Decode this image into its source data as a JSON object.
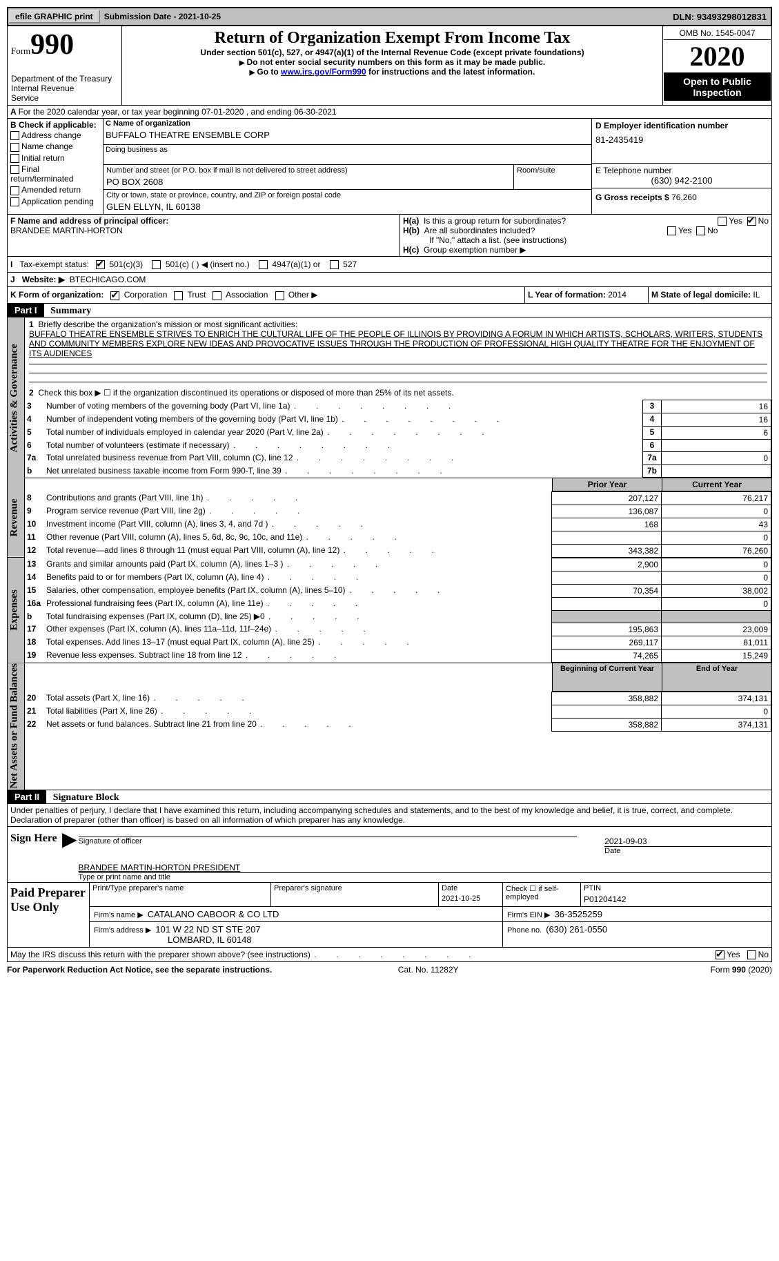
{
  "topbar": {
    "efile_btn": "efile GRAPHIC print",
    "subdate_label": "Submission Date - ",
    "subdate": "2021-10-25",
    "dln_label": "DLN: ",
    "dln": "93493298012831"
  },
  "header": {
    "form_small": "Form",
    "form_big": "990",
    "dept": "Department of the Treasury\nInternal Revenue\nService",
    "title": "Return of Organization Exempt From Income Tax",
    "subtitle": "Under section 501(c), 527, or 4947(a)(1) of the Internal Revenue Code (except private foundations)",
    "instr1": "Do not enter social security numbers on this form as it may be made public.",
    "instr2_pre": "Go to ",
    "instr2_link": "www.irs.gov/Form990",
    "instr2_post": " for instructions and the latest information.",
    "omb": "OMB No. 1545-0047",
    "year": "2020",
    "inspect": "Open to Public Inspection"
  },
  "lineA": "For the 2020 calendar year, or tax year beginning 07-01-2020    , and ending 06-30-2021",
  "secB": {
    "hdr": "B Check if applicable:",
    "items": [
      "Address change",
      "Name change",
      "Initial return",
      "Final return/terminated",
      "Amended return",
      "Application pending"
    ]
  },
  "secC": {
    "label": "C Name of organization",
    "val": "BUFFALO THEATRE ENSEMBLE CORP",
    "dba": "Doing business as",
    "addr_label": "Number and street (or P.O. box if mail is not delivered to street address)",
    "room": "Room/suite",
    "addr": "PO BOX 2608",
    "city_label": "City or town, state or province, country, and ZIP or foreign postal code",
    "city": "GLEN ELLYN, IL  60138"
  },
  "secD": {
    "label": "D Employer identification number",
    "val": "81-2435419"
  },
  "secE": {
    "label": "E Telephone number",
    "val": "(630) 942-2100"
  },
  "secG": {
    "label": "G Gross receipts $ ",
    "val": "76,260"
  },
  "secF": {
    "label": "F  Name and address of principal officer:",
    "val": "BRANDEE MARTIN-HORTON"
  },
  "secH": {
    "a": "Is this a group return for subordinates?",
    "b": "Are all subordinates included?",
    "note": "If \"No,\" attach a list. (see instructions)",
    "c": "Group exemption number ▶",
    "yes": "Yes",
    "no": "No"
  },
  "secI": {
    "label": "Tax-exempt status:",
    "opts": [
      "501(c)(3)",
      "501(c) (   ) ◀ (insert no.)",
      "4947(a)(1) or",
      "527"
    ]
  },
  "secJ": {
    "label": "Website: ▶",
    "val": "BTECHICAGO.COM"
  },
  "secK": {
    "label": "K Form of organization:",
    "opts": [
      "Corporation",
      "Trust",
      "Association",
      "Other ▶"
    ]
  },
  "secL": {
    "label": "L Year of formation: ",
    "val": "2014"
  },
  "secM": {
    "label": "M State of legal domicile: ",
    "val": "IL"
  },
  "part1": {
    "hdr": "Part I",
    "title": "Summary",
    "q1": "Briefly describe the organization's mission or most significant activities:",
    "q1val": "BUFFALO THEATRE ENSEMBLE STRIVES TO ENRICH THE CULTURAL LIFE OF THE PEOPLE OF ILLINOIS BY PROVIDING A FORUM IN WHICH ARTISTS, SCHOLARS, WRITERS, STUDENTS AND COMMUNITY MEMBERS EXPLORE NEW IDEAS AND PROVOCATIVE ISSUES THROUGH THE PRODUCTION OF PROFESSIONAL HIGH QUALITY THEATRE FOR THE ENJOYMENT OF ITS AUDIENCES",
    "q2": "Check this box ▶ ☐  if the organization discontinued its operations or disposed of more than 25% of its net assets.",
    "tabs": {
      "gov": "Activities & Governance",
      "rev": "Revenue",
      "exp": "Expenses",
      "net": "Net Assets or Fund Balances"
    },
    "rows_gov": [
      {
        "n": "3",
        "t": "Number of voting members of the governing body (Part VI, line 1a)",
        "box": "3",
        "v": "16"
      },
      {
        "n": "4",
        "t": "Number of independent voting members of the governing body (Part VI, line 1b)",
        "box": "4",
        "v": "16"
      },
      {
        "n": "5",
        "t": "Total number of individuals employed in calendar year 2020 (Part V, line 2a)",
        "box": "5",
        "v": "6"
      },
      {
        "n": "6",
        "t": "Total number of volunteers (estimate if necessary)",
        "box": "6",
        "v": ""
      },
      {
        "n": "7a",
        "t": "Total unrelated business revenue from Part VIII, column (C), line 12",
        "box": "7a",
        "v": "0"
      },
      {
        "n": "b",
        "t": "Net unrelated business taxable income from Form 990-T, line 39",
        "box": "7b",
        "v": ""
      }
    ],
    "col_hdr_prior": "Prior Year",
    "col_hdr_curr": "Current Year",
    "rows_rev": [
      {
        "n": "8",
        "t": "Contributions and grants (Part VIII, line 1h)",
        "p": "207,127",
        "c": "76,217"
      },
      {
        "n": "9",
        "t": "Program service revenue (Part VIII, line 2g)",
        "p": "136,087",
        "c": "0"
      },
      {
        "n": "10",
        "t": "Investment income (Part VIII, column (A), lines 3, 4, and 7d )",
        "p": "168",
        "c": "43"
      },
      {
        "n": "11",
        "t": "Other revenue (Part VIII, column (A), lines 5, 6d, 8c, 9c, 10c, and 11e)",
        "p": "",
        "c": "0"
      },
      {
        "n": "12",
        "t": "Total revenue—add lines 8 through 11 (must equal Part VIII, column (A), line 12)",
        "p": "343,382",
        "c": "76,260"
      }
    ],
    "rows_exp": [
      {
        "n": "13",
        "t": "Grants and similar amounts paid (Part IX, column (A), lines 1–3 )",
        "p": "2,900",
        "c": "0"
      },
      {
        "n": "14",
        "t": "Benefits paid to or for members (Part IX, column (A), line 4)",
        "p": "",
        "c": "0"
      },
      {
        "n": "15",
        "t": "Salaries, other compensation, employee benefits (Part IX, column (A), lines 5–10)",
        "p": "70,354",
        "c": "38,002"
      },
      {
        "n": "16a",
        "t": "Professional fundraising fees (Part IX, column (A), line 11e)",
        "p": "",
        "c": "0"
      },
      {
        "n": "b",
        "t": "Total fundraising expenses (Part IX, column (D), line 25) ▶0",
        "p": "GREY",
        "c": "GREY"
      },
      {
        "n": "17",
        "t": "Other expenses (Part IX, column (A), lines 11a–11d, 11f–24e)",
        "p": "195,863",
        "c": "23,009"
      },
      {
        "n": "18",
        "t": "Total expenses. Add lines 13–17 (must equal Part IX, column (A), line 25)",
        "p": "269,117",
        "c": "61,011"
      },
      {
        "n": "19",
        "t": "Revenue less expenses. Subtract line 18 from line 12",
        "p": "74,265",
        "c": "15,249"
      }
    ],
    "col_hdr_beg": "Beginning of Current Year",
    "col_hdr_end": "End of Year",
    "rows_net": [
      {
        "n": "20",
        "t": "Total assets (Part X, line 16)",
        "p": "358,882",
        "c": "374,131"
      },
      {
        "n": "21",
        "t": "Total liabilities (Part X, line 26)",
        "p": "",
        "c": "0"
      },
      {
        "n": "22",
        "t": "Net assets or fund balances. Subtract line 21 from line 20",
        "p": "358,882",
        "c": "374,131"
      }
    ]
  },
  "part2": {
    "hdr": "Part II",
    "title": "Signature Block",
    "decl": "Under penalties of perjury, I declare that I have examined this return, including accompanying schedules and statements, and to the best of my knowledge and belief, it is true, correct, and complete. Declaration of preparer (other than officer) is based on all information of which preparer has any knowledge.",
    "sign_here": "Sign Here",
    "sig_officer": "Signature of officer",
    "sig_date": "Date",
    "sig_date_val": "2021-09-03",
    "sig_name": "BRANDEE MARTIN-HORTON PRESIDENT",
    "sig_name_lbl": "Type or print name and title",
    "paid": "Paid Preparer Use Only",
    "prep_name_lbl": "Print/Type preparer's name",
    "prep_sig_lbl": "Preparer's signature",
    "prep_date_lbl": "Date",
    "prep_date": "2021-10-25",
    "prep_chk": "Check ☐ if self-employed",
    "ptin_lbl": "PTIN",
    "ptin": "P01204142",
    "firm_name_lbl": "Firm's name    ▶ ",
    "firm_name": "CATALANO CABOOR & CO LTD",
    "firm_ein_lbl": "Firm's EIN ▶ ",
    "firm_ein": "36-3525259",
    "firm_addr_lbl": "Firm's address ▶ ",
    "firm_addr": "101 W 22 ND ST STE 207",
    "firm_city": "LOMBARD, IL  60148",
    "phone_lbl": "Phone no. ",
    "phone": "(630) 261-0550",
    "discuss": "May the IRS discuss this return with the preparer shown above? (see instructions)",
    "yes": "Yes",
    "no": "No"
  },
  "footer": {
    "left": "For Paperwork Reduction Act Notice, see the separate instructions.",
    "mid": "Cat. No. 11282Y",
    "right": "Form 990 (2020)"
  }
}
